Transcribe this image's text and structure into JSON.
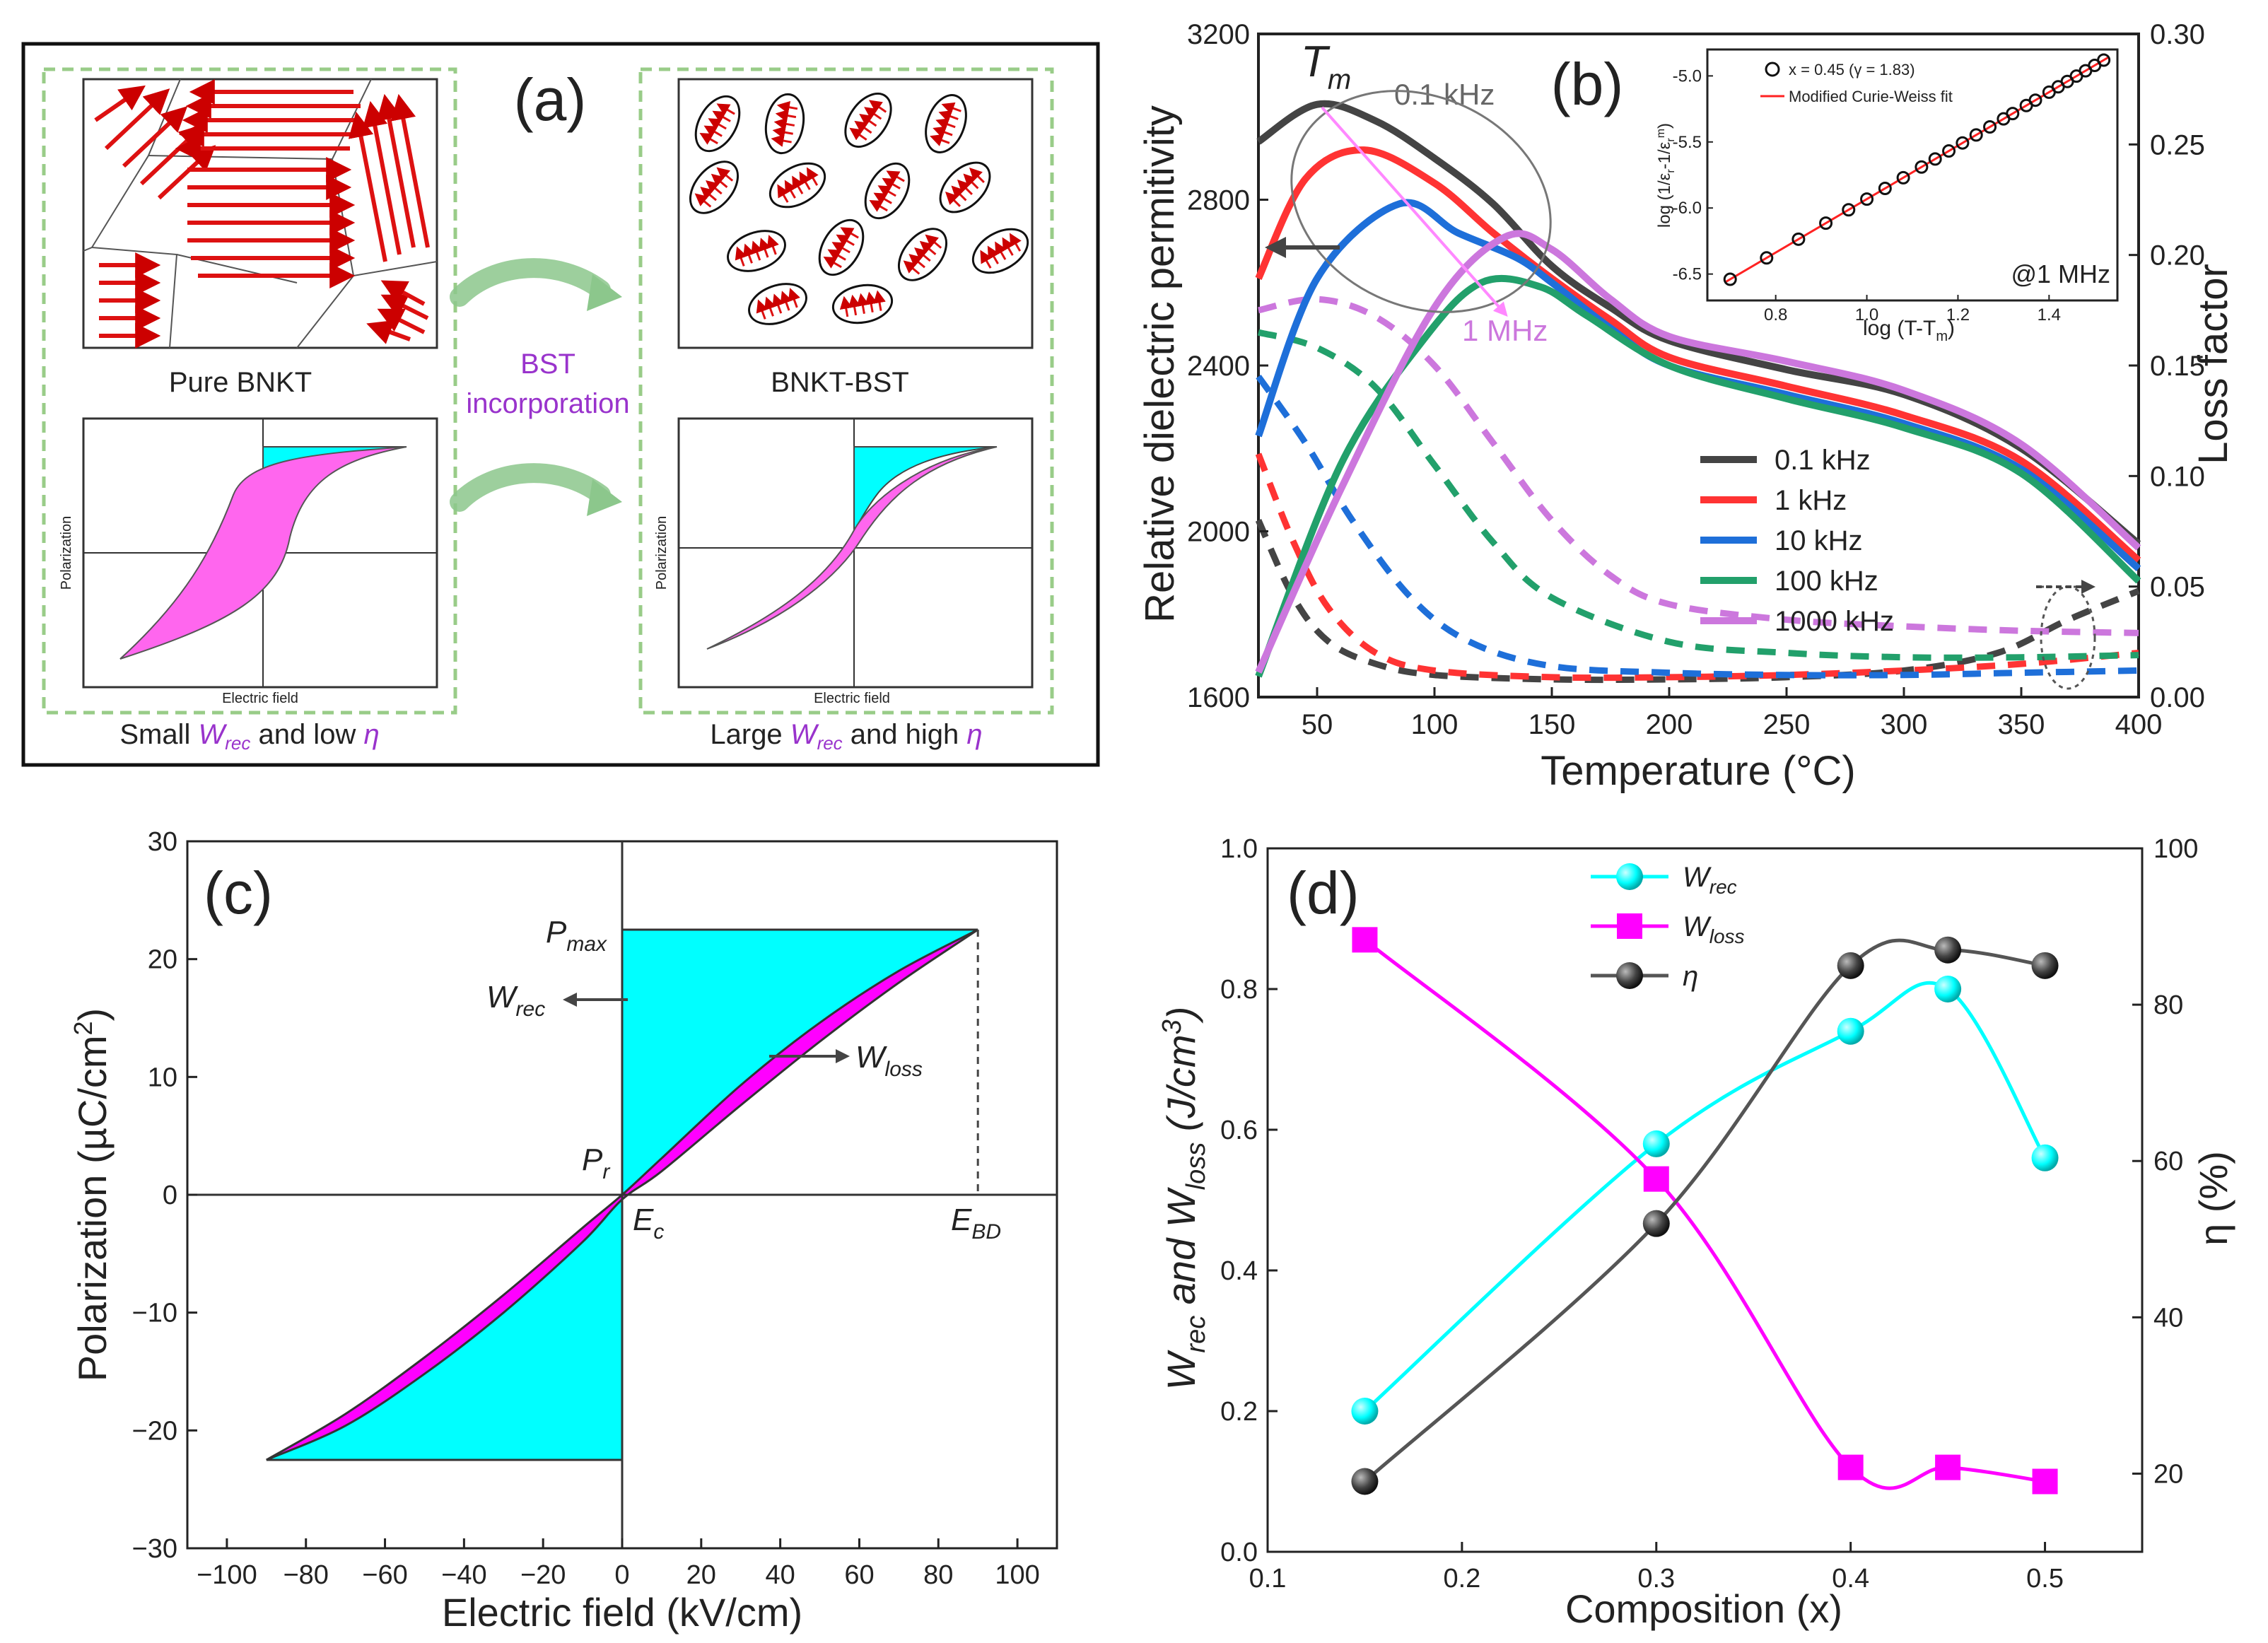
{
  "colors": {
    "cyan": "#00ffff",
    "magenta": "#ff00ff",
    "violet": "#cc77dd",
    "dark": "#444444",
    "red": "#ff3333",
    "blue": "#1e6fd9",
    "green": "#22a06b",
    "grey": "#666666",
    "dashed_box": "#99cc88",
    "arrow_green": "#8cc78c",
    "text_purple": "#9933cc"
  },
  "chart_data": [
    {
      "id": "a",
      "type": "schematic",
      "panel_label": "(a)",
      "left_caption": "Pure BNKT",
      "right_caption": "BNKT-BST",
      "transition_label_line1": "BST",
      "transition_label_line2": "incorporation",
      "left_bottom": {
        "prefix": "Small ",
        "var": "W",
        "sub": "rec",
        "mid": " and low ",
        "eta": "η"
      },
      "right_bottom": {
        "prefix": "Large ",
        "var": "W",
        "sub": "rec",
        "mid": " and high ",
        "eta": "η"
      },
      "ylabel": "Polarization",
      "xlabel": "Electric field"
    },
    {
      "id": "b",
      "type": "line",
      "panel_label": "(b)",
      "xlabel": "Temperature (°C)",
      "ylabel": "Relative dielectric permitivity",
      "y2label": "Loss factor",
      "xlim": [
        25,
        400
      ],
      "ylim": [
        1600,
        3200
      ],
      "y2lim": [
        0.0,
        0.3
      ],
      "xticks": [
        50,
        100,
        150,
        200,
        250,
        300,
        350,
        400
      ],
      "yticks": [
        1600,
        2000,
        2400,
        2800,
        3200
      ],
      "y2ticks": [
        "0.00",
        "0.05",
        "0.10",
        "0.15",
        "0.20",
        "0.25",
        "0.30"
      ],
      "tm_label": "T",
      "tm_sub": "m",
      "annot_low": "0.1 kHz",
      "annot_high": "1 MHz",
      "series": [
        {
          "name": "0.1 kHz",
          "color": "#444444",
          "perm": [
            [
              25,
              2940
            ],
            [
              50,
              3030
            ],
            [
              75,
              2990
            ],
            [
              100,
              2900
            ],
            [
              125,
              2790
            ],
            [
              150,
              2640
            ],
            [
              175,
              2540
            ],
            [
              200,
              2460
            ],
            [
              250,
              2390
            ],
            [
              300,
              2330
            ],
            [
              350,
              2200
            ],
            [
              400,
              1970
            ]
          ],
          "loss": [
            [
              25,
              0.08
            ],
            [
              40,
              0.045
            ],
            [
              55,
              0.025
            ],
            [
              75,
              0.015
            ],
            [
              100,
              0.01
            ],
            [
              150,
              0.008
            ],
            [
              200,
              0.008
            ],
            [
              250,
              0.009
            ],
            [
              300,
              0.012
            ],
            [
              340,
              0.02
            ],
            [
              370,
              0.035
            ],
            [
              400,
              0.048
            ]
          ]
        },
        {
          "name": "1 kHz",
          "color": "#ff3333",
          "perm": [
            [
              25,
              2610
            ],
            [
              45,
              2850
            ],
            [
              70,
              2920
            ],
            [
              100,
              2840
            ],
            [
              125,
              2720
            ],
            [
              150,
              2610
            ],
            [
              175,
              2510
            ],
            [
              200,
              2420
            ],
            [
              250,
              2350
            ],
            [
              300,
              2280
            ],
            [
              350,
              2170
            ],
            [
              400,
              1930
            ]
          ],
          "loss": [
            [
              25,
              0.11
            ],
            [
              40,
              0.07
            ],
            [
              55,
              0.04
            ],
            [
              75,
              0.02
            ],
            [
              100,
              0.012
            ],
            [
              150,
              0.009
            ],
            [
              200,
              0.009
            ],
            [
              250,
              0.01
            ],
            [
              300,
              0.012
            ],
            [
              350,
              0.015
            ],
            [
              400,
              0.02
            ]
          ]
        },
        {
          "name": "10 kHz",
          "color": "#1e6fd9",
          "perm": [
            [
              25,
              2230
            ],
            [
              50,
              2610
            ],
            [
              85,
              2790
            ],
            [
              110,
              2720
            ],
            [
              135,
              2660
            ],
            [
              150,
              2600
            ],
            [
              175,
              2490
            ],
            [
              200,
              2400
            ],
            [
              250,
              2330
            ],
            [
              300,
              2260
            ],
            [
              350,
              2150
            ],
            [
              400,
              1910
            ]
          ],
          "loss": [
            [
              25,
              0.145
            ],
            [
              45,
              0.115
            ],
            [
              65,
              0.08
            ],
            [
              90,
              0.045
            ],
            [
              115,
              0.025
            ],
            [
              150,
              0.014
            ],
            [
              200,
              0.011
            ],
            [
              250,
              0.01
            ],
            [
              300,
              0.01
            ],
            [
              350,
              0.011
            ],
            [
              400,
              0.012
            ]
          ]
        },
        {
          "name": "100 kHz",
          "color": "#22a06b",
          "perm": [
            [
              25,
              1650
            ],
            [
              60,
              2160
            ],
            [
              95,
              2460
            ],
            [
              120,
              2600
            ],
            [
              145,
              2590
            ],
            [
              165,
              2520
            ],
            [
              200,
              2400
            ],
            [
              250,
              2320
            ],
            [
              300,
              2250
            ],
            [
              350,
              2140
            ],
            [
              400,
              1880
            ]
          ],
          "loss": [
            [
              25,
              0.165
            ],
            [
              50,
              0.158
            ],
            [
              75,
              0.14
            ],
            [
              100,
              0.105
            ],
            [
              125,
              0.07
            ],
            [
              150,
              0.045
            ],
            [
              200,
              0.025
            ],
            [
              250,
              0.02
            ],
            [
              300,
              0.018
            ],
            [
              350,
              0.018
            ],
            [
              400,
              0.019
            ]
          ]
        },
        {
          "name": "1000 kHz",
          "color": "#cc77dd",
          "perm": [
            [
              25,
              1660
            ],
            [
              60,
              2100
            ],
            [
              100,
              2540
            ],
            [
              130,
              2710
            ],
            [
              150,
              2680
            ],
            [
              175,
              2560
            ],
            [
              200,
              2470
            ],
            [
              250,
              2410
            ],
            [
              300,
              2340
            ],
            [
              350,
              2210
            ],
            [
              400,
              1960
            ]
          ],
          "loss": [
            [
              25,
              0.175
            ],
            [
              50,
              0.18
            ],
            [
              75,
              0.172
            ],
            [
              100,
              0.15
            ],
            [
              125,
              0.115
            ],
            [
              150,
              0.08
            ],
            [
              175,
              0.055
            ],
            [
              200,
              0.042
            ],
            [
              250,
              0.035
            ],
            [
              300,
              0.032
            ],
            [
              350,
              0.03
            ],
            [
              400,
              0.029
            ]
          ]
        }
      ],
      "inset": {
        "type": "scatter",
        "xlabel": "log (T-T",
        "xlabel_sub": "m",
        "xlabel_end": ")",
        "ylabel": "log (1/ε",
        "ylabel_sub": "r",
        "ylabel_mid": "-1/ε",
        "ylabel_sup": "m",
        "ylabel_sub2": "r",
        "ylabel_end": ")",
        "xlim": [
          0.65,
          1.55
        ],
        "ylim": [
          -6.7,
          -4.8
        ],
        "xticks": [
          "0.8",
          "1.0",
          "1.2",
          "1.4"
        ],
        "yticks": [
          "-5.0",
          "-5.5",
          "-6.0",
          "-6.5"
        ],
        "legend_scatter": "x = 0.45 (γ = 1.83)",
        "legend_fit": "Modified Curie-Weiss fit",
        "freq_label": "@1 MHz",
        "points_x": [
          0.7,
          0.78,
          0.85,
          0.91,
          0.96,
          1.0,
          1.04,
          1.08,
          1.12,
          1.15,
          1.18,
          1.21,
          1.24,
          1.27,
          1.3,
          1.32,
          1.35,
          1.37,
          1.4,
          1.42,
          1.44,
          1.46,
          1.48,
          1.5,
          1.52
        ],
        "fit": [
          [
            0.69,
            -6.56
          ],
          [
            1.53,
            -4.86
          ]
        ]
      }
    },
    {
      "id": "c",
      "type": "area",
      "panel_label": "(c)",
      "xlabel": "Electric field (kV/cm)",
      "ylabel": "Polarization (µC/cm",
      "ylabel_sup": "2",
      "ylabel_end": ")",
      "xlim": [
        -110,
        110
      ],
      "ylim": [
        -30,
        30
      ],
      "xticks": [
        -100,
        -80,
        -60,
        -40,
        -20,
        0,
        20,
        40,
        60,
        80,
        100
      ],
      "yticks": [
        -30,
        -20,
        -10,
        0,
        10,
        20,
        30
      ],
      "pmax": 22.5,
      "ebd": 90,
      "upper_branch": [
        [
          -90,
          -22.5
        ],
        [
          -70,
          -18.6
        ],
        [
          -50,
          -13.8
        ],
        [
          -30,
          -8.5
        ],
        [
          -10,
          -2.8
        ],
        [
          0,
          0.0
        ],
        [
          10,
          3.1
        ],
        [
          30,
          9.3
        ],
        [
          50,
          14.6
        ],
        [
          70,
          19.0
        ],
        [
          90,
          22.5
        ]
      ],
      "lower_branch": [
        [
          -90,
          -22.5
        ],
        [
          -70,
          -19.6
        ],
        [
          -50,
          -15.2
        ],
        [
          -30,
          -10.0
        ],
        [
          -10,
          -4.0
        ],
        [
          0,
          -0.4
        ],
        [
          10,
          2.0
        ],
        [
          30,
          7.6
        ],
        [
          50,
          13.0
        ],
        [
          70,
          18.0
        ],
        [
          90,
          22.5
        ]
      ],
      "labels": {
        "pmax_var": "P",
        "pmax_sub": "max",
        "wrec_var": "W",
        "wrec_sub": "rec",
        "wloss_var": "W",
        "wloss_sub": "loss",
        "pr_var": "P",
        "pr_sub": "r",
        "ec_var": "E",
        "ec_sub": "c",
        "ebd_var": "E",
        "ebd_sub": "BD"
      }
    },
    {
      "id": "d",
      "type": "line",
      "panel_label": "(d)",
      "xlabel": "Composition (x)",
      "ylabel": "W",
      "ylabel_sub": "rec",
      "ylabel_mid": " and W",
      "ylabel_sub2": "loss",
      "ylabel_end": " (J/cm",
      "ylabel_sup": "3",
      "ylabel_close": ")",
      "y2label": "η (%)",
      "xlim": [
        0.1,
        0.55
      ],
      "ylim": [
        0.0,
        1.0
      ],
      "y2lim": [
        10,
        100
      ],
      "xticks": [
        "0.1",
        "0.2",
        "0.3",
        "0.4",
        "0.5"
      ],
      "yticks": [
        "0.0",
        "0.2",
        "0.4",
        "0.6",
        "0.8",
        "1.0"
      ],
      "y2ticks": [
        "20",
        "40",
        "60",
        "80",
        "100"
      ],
      "x": [
        0.15,
        0.3,
        0.4,
        0.45,
        0.5
      ],
      "series": [
        {
          "name": "W",
          "sub": "rec",
          "color": "#00ffff",
          "marker": "circle",
          "axis": "left",
          "values": [
            0.2,
            0.58,
            0.74,
            0.8,
            0.56
          ]
        },
        {
          "name": "W",
          "sub": "loss",
          "color": "#ff00ff",
          "marker": "square",
          "axis": "left",
          "values": [
            0.87,
            0.53,
            0.12,
            0.12,
            0.1
          ]
        },
        {
          "name": "η",
          "sub": "",
          "color": "#555555",
          "marker": "ball",
          "axis": "right",
          "values": [
            19,
            52,
            85,
            87,
            85
          ]
        }
      ]
    }
  ]
}
